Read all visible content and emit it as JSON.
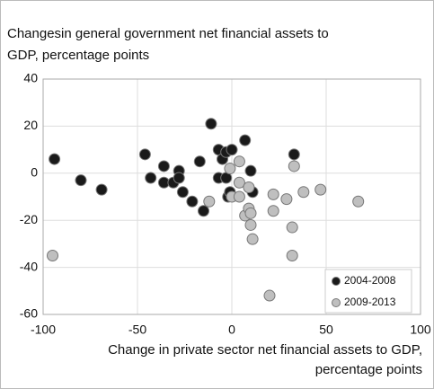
{
  "chart_data": {
    "type": "scatter",
    "title_lines": [
      "Changesin general government net financial assets to",
      "GDP, percentage points"
    ],
    "xlabel_lines": [
      "Change in private sector net financial assets to GDP,",
      "percentage points"
    ],
    "xlim": [
      -100,
      100
    ],
    "xticks": [
      -100,
      -50,
      0,
      50,
      100
    ],
    "ylim": [
      -60,
      40
    ],
    "yticks": [
      -60,
      -40,
      -20,
      0,
      20,
      40
    ],
    "grid": true,
    "legend": "lower right",
    "series": [
      {
        "name": "2004-2008",
        "color": "#1a1a1a",
        "x": [
          -94,
          -80,
          -69,
          -46,
          -43,
          -36,
          -36,
          -31,
          -28,
          -28,
          -26,
          -21,
          -17,
          -15,
          -11,
          -7,
          -5,
          -7,
          -3,
          -3,
          0,
          -2,
          -1,
          7,
          10,
          11,
          33
        ],
        "y": [
          6,
          -3,
          -7,
          8,
          -2,
          3,
          -4,
          -4,
          1,
          -2,
          -8,
          -12,
          5,
          -16,
          21,
          10,
          6,
          -2,
          -2,
          9,
          10,
          -10,
          -8,
          14,
          1,
          -8,
          8
        ]
      },
      {
        "name": "2009-2013",
        "color": "#bfbfbf",
        "x": [
          -95,
          -12,
          -1,
          0,
          4,
          4,
          4,
          7,
          9,
          9,
          10,
          10,
          11,
          22,
          22,
          29,
          33,
          32,
          32,
          38,
          47,
          20,
          67
        ],
        "y": [
          -35,
          -12,
          2,
          -10,
          5,
          -10,
          -4,
          -18,
          -6,
          -15,
          -22,
          -17,
          -28,
          -9,
          -16,
          -11,
          3,
          -23,
          -35,
          -8,
          -7,
          -52,
          -12
        ]
      }
    ]
  }
}
